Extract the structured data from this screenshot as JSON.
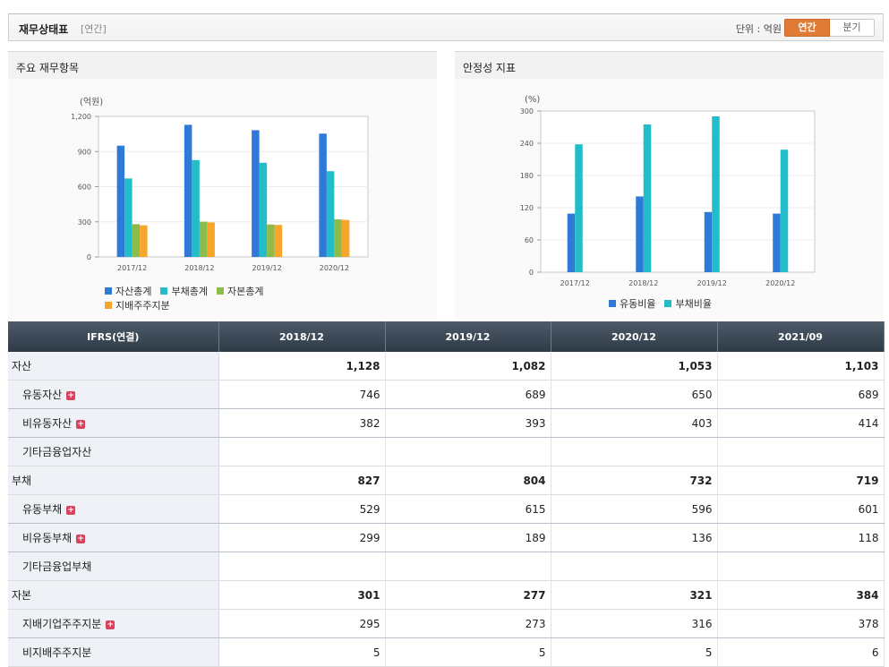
{
  "header": {
    "title": "재무상태표",
    "subtitle": "[연간]",
    "unit": "단위 : 억원",
    "toggle_annual": "연간",
    "toggle_quarter": "분기"
  },
  "panels": {
    "left_title": "주요 재무항목",
    "right_title": "안정성 지표"
  },
  "chart_data": [
    {
      "type": "bar",
      "unit_label": "(억원)",
      "categories": [
        "2017/12",
        "2018/12",
        "2019/12",
        "2020/12"
      ],
      "ylim": [
        0,
        1200
      ],
      "yticks": [
        0,
        300,
        600,
        900,
        1200
      ],
      "ytick_labels": [
        "0",
        "300",
        "600",
        "900",
        "1,200"
      ],
      "grid": true,
      "legend_position": "bottom-left",
      "series": [
        {
          "name": "자산총계",
          "color": "#2f7ad6",
          "values": [
            950,
            1128,
            1082,
            1053
          ]
        },
        {
          "name": "부채총계",
          "color": "#22bdc9",
          "values": [
            670,
            827,
            804,
            732
          ]
        },
        {
          "name": "자본총계",
          "color": "#8cbd4a",
          "values": [
            280,
            301,
            277,
            321
          ]
        },
        {
          "name": "지배주주지분",
          "color": "#f8a52c",
          "values": [
            270,
            295,
            273,
            316
          ]
        }
      ]
    },
    {
      "type": "bar",
      "unit_label": "(%)",
      "categories": [
        "2017/12",
        "2018/12",
        "2019/12",
        "2020/12"
      ],
      "ylim": [
        0,
        300
      ],
      "yticks": [
        0,
        60,
        120,
        180,
        240,
        300
      ],
      "ytick_labels": [
        "0",
        "60",
        "120",
        "180",
        "240",
        "300"
      ],
      "grid": true,
      "legend_position": "bottom-center",
      "series": [
        {
          "name": "유동비율",
          "color": "#2f7ad6",
          "values": [
            109,
            141,
            112,
            109
          ]
        },
        {
          "name": "부채비율",
          "color": "#22bdc9",
          "values": [
            238,
            275,
            290,
            228
          ]
        }
      ]
    }
  ],
  "table": {
    "header_label": "IFRS(연결)",
    "columns": [
      "2018/12",
      "2019/12",
      "2020/12",
      "2021/09"
    ],
    "rows": [
      {
        "label": "자산",
        "values": [
          "1,128",
          "1,082",
          "1,053",
          "1,103"
        ],
        "bold": true,
        "sub": false,
        "expand": false
      },
      {
        "label": "유동자산",
        "values": [
          "746",
          "689",
          "650",
          "689"
        ],
        "bold": false,
        "sub": true,
        "expand": true
      },
      {
        "label": "비유동자산",
        "values": [
          "382",
          "393",
          "403",
          "414"
        ],
        "bold": false,
        "sub": true,
        "expand": true
      },
      {
        "label": "기타금융업자산",
        "values": [
          "",
          "",
          "",
          ""
        ],
        "bold": false,
        "sub": true,
        "expand": false
      },
      {
        "label": "부채",
        "values": [
          "827",
          "804",
          "732",
          "719"
        ],
        "bold": true,
        "sub": false,
        "expand": false
      },
      {
        "label": "유동부채",
        "values": [
          "529",
          "615",
          "596",
          "601"
        ],
        "bold": false,
        "sub": true,
        "expand": true
      },
      {
        "label": "비유동부채",
        "values": [
          "299",
          "189",
          "136",
          "118"
        ],
        "bold": false,
        "sub": true,
        "expand": true
      },
      {
        "label": "기타금융업부채",
        "values": [
          "",
          "",
          "",
          ""
        ],
        "bold": false,
        "sub": true,
        "expand": false
      },
      {
        "label": "자본",
        "values": [
          "301",
          "277",
          "321",
          "384"
        ],
        "bold": true,
        "sub": false,
        "expand": false
      },
      {
        "label": "지배기업주주지분",
        "values": [
          "295",
          "273",
          "316",
          "378"
        ],
        "bold": false,
        "sub": true,
        "expand": true
      },
      {
        "label": "비지배주주지분",
        "values": [
          "5",
          "5",
          "5",
          "6"
        ],
        "bold": false,
        "sub": true,
        "expand": false
      }
    ],
    "expand_symbol": "+"
  }
}
